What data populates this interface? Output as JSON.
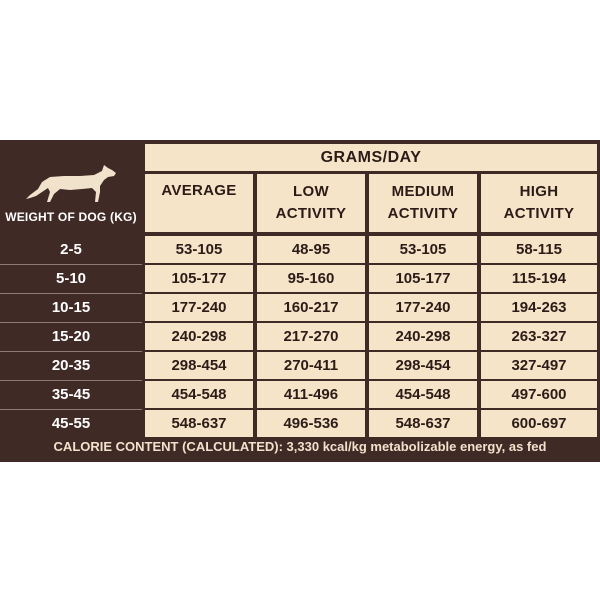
{
  "header": {
    "grams_per_day": "GRAMS/DAY",
    "weight_of_dog": "WEIGHT OF DOG (KG)",
    "columns": [
      {
        "line1": "AVERAGE",
        "line2": ""
      },
      {
        "line1": "LOW",
        "line2": "ACTIVITY"
      },
      {
        "line1": "MEDIUM",
        "line2": "ACTIVITY"
      },
      {
        "line1": "HIGH",
        "line2": "ACTIVITY"
      }
    ]
  },
  "rows": [
    {
      "weight": "2-5",
      "values": [
        "53-105",
        "48-95",
        "53-105",
        "58-115"
      ]
    },
    {
      "weight": "5-10",
      "values": [
        "105-177",
        "95-160",
        "105-177",
        "115-194"
      ]
    },
    {
      "weight": "10-15",
      "values": [
        "177-240",
        "160-217",
        "177-240",
        "194-263"
      ]
    },
    {
      "weight": "15-20",
      "values": [
        "240-298",
        "217-270",
        "240-298",
        "263-327"
      ]
    },
    {
      "weight": "20-35",
      "values": [
        "298-454",
        "270-411",
        "298-454",
        "327-497"
      ]
    },
    {
      "weight": "35-45",
      "values": [
        "454-548",
        "411-496",
        "454-548",
        "497-600"
      ]
    },
    {
      "weight": "45-55",
      "values": [
        "548-637",
        "496-536",
        "548-637",
        "600-697"
      ]
    }
  ],
  "footer": {
    "calorie_content": "CALORIE CONTENT (CALCULATED): 3,330 kcal/kg metabolizable energy, as fed"
  },
  "icons": {
    "dog": "dog-silhouette-icon"
  },
  "colors": {
    "panel": "#3f2a26",
    "cream": "#f6e4c8",
    "text_dark": "#2b1c18",
    "text_light": "#ffffff"
  }
}
